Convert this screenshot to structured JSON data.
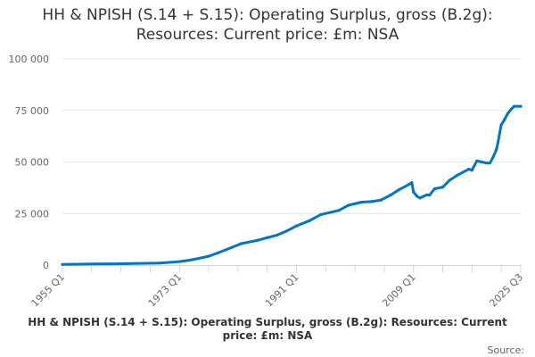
{
  "chart_data": {
    "type": "line",
    "title": "HH & NPISH (S.14 + S.15): Operating Surplus, gross (B.2g): Resources: Current price: £m: NSA",
    "xlabel": "",
    "ylabel": "",
    "x_range": [
      "1955 Q1",
      "2025 Q3"
    ],
    "ylim": [
      0,
      100000
    ],
    "yticks": [
      0,
      25000,
      50000,
      75000,
      100000
    ],
    "ytick_labels": [
      "0",
      "25 000",
      "50 000",
      "75 000",
      "100 000"
    ],
    "xtick_labels": [
      "1955 Q1",
      "1973 Q1",
      "1991 Q1",
      "2009 Q1",
      "2025 Q3"
    ],
    "grid": "horizontal",
    "legend": "none",
    "color": "#0075c2",
    "series": [
      {
        "points": [
          [
            "1955 Q1",
            300
          ],
          [
            "1960 Q1",
            500
          ],
          [
            "1965 Q1",
            700
          ],
          [
            "1970 Q1",
            1000
          ],
          [
            "1973 Q1",
            1700
          ],
          [
            "1975 Q1",
            2600
          ],
          [
            "1977 Q3",
            4300
          ],
          [
            "1979 Q1",
            6000
          ],
          [
            "1981 Q1",
            8500
          ],
          [
            "1982 Q3",
            10400
          ],
          [
            "1985 Q1",
            12000
          ],
          [
            "1986 Q3",
            13300
          ],
          [
            "1988 Q1",
            14500
          ],
          [
            "1989 Q3",
            16500
          ],
          [
            "1991 Q1",
            19000
          ],
          [
            "1993 Q1",
            21500
          ],
          [
            "1994 Q4",
            24500
          ],
          [
            "1997 Q3",
            26500
          ],
          [
            "1999 Q1",
            29000
          ],
          [
            "2001 Q1",
            30500
          ],
          [
            "2002 Q3",
            30800
          ],
          [
            "2004 Q1",
            31500
          ],
          [
            "2005 Q3",
            34000
          ],
          [
            "2006 Q4",
            36500
          ],
          [
            "2008 Q2",
            39000
          ],
          [
            "2008 Q4",
            40000
          ],
          [
            "2009 Q1",
            35500
          ],
          [
            "2009 Q3",
            33500
          ],
          [
            "2010 Q1",
            32500
          ],
          [
            "2011 Q1",
            34000
          ],
          [
            "2011 Q3",
            34000
          ],
          [
            "2012 Q2",
            37000
          ],
          [
            "2013 Q3",
            37800
          ],
          [
            "2014 Q3",
            41000
          ],
          [
            "2015 Q4",
            43600
          ],
          [
            "2017 Q3",
            46500
          ],
          [
            "2018 Q1",
            46000
          ],
          [
            "2018 Q4",
            50500
          ],
          [
            "2019 Q3",
            50000
          ],
          [
            "2020 Q2",
            49500
          ],
          [
            "2020 Q4",
            49500
          ],
          [
            "2021 Q2",
            52300
          ],
          [
            "2021 Q4",
            56000
          ],
          [
            "2022 Q1",
            59500
          ],
          [
            "2022 Q3",
            68000
          ],
          [
            "2023 Q1",
            70500
          ],
          [
            "2023 Q3",
            73500
          ],
          [
            "2024 Q1",
            75500
          ],
          [
            "2024 Q3",
            77000
          ],
          [
            "2025 Q3",
            77000
          ]
        ]
      }
    ]
  },
  "footer": {
    "caption": "HH & NPISH (S.14 + S.15): Operating Surplus, gross (B.2g): Resources: Current price: £m: NSA",
    "source": "Source:"
  }
}
